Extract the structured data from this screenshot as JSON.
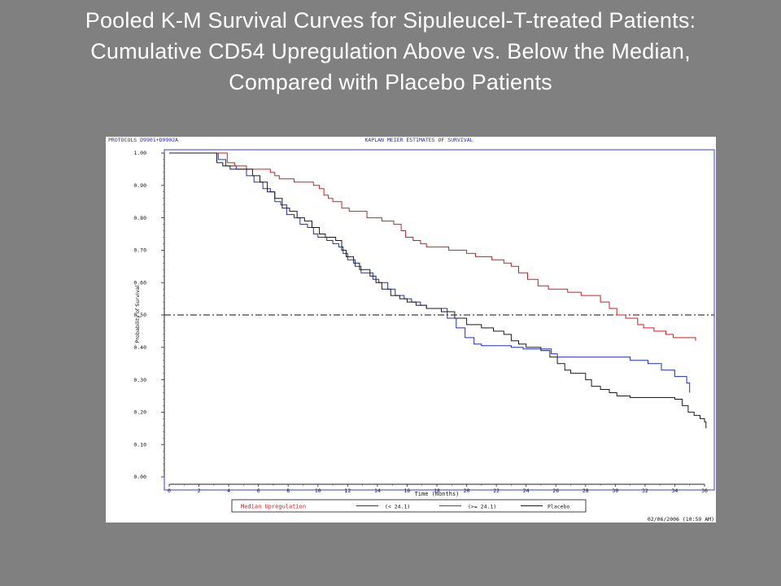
{
  "slide": {
    "title_lines": [
      "Pooled K-M Survival Curves for Sipuleucel-T-treated Patients:",
      "Cumulative CD54 Upregulation Above vs. Below the Median,",
      "Compared with Placebo Patients"
    ]
  },
  "chart_data": {
    "type": "line",
    "step": true,
    "header_left": "PROTOCOLS D9901+D9902A",
    "title": "KAPLAN MEIER ESTIMATES OF SURVIVAL",
    "xlabel": "Time (months)",
    "ylabel": "Probability of Survival",
    "xlim": [
      0,
      36
    ],
    "ylim": [
      0,
      1
    ],
    "xticks": [
      "0",
      "2",
      "4",
      "6",
      "8",
      "10",
      "12",
      "14",
      "16",
      "18",
      "20",
      "22",
      "24",
      "26",
      "28",
      "30",
      "32",
      "34",
      "36"
    ],
    "yticks": [
      "0.00",
      "0.10",
      "0.20",
      "0.30",
      "0.40",
      "0.50",
      "0.60",
      "0.70",
      "0.80",
      "0.90",
      "1.00"
    ],
    "reference_line": {
      "y": 0.5,
      "style": "dash-dot"
    },
    "legend": {
      "title": "Median Upregulation",
      "placement": "bottom",
      "entries": [
        "(< 24.1)",
        "(>= 24.1)",
        "Placebo"
      ]
    },
    "footer_right": "02/06/2006 (10:59 AM)",
    "series": [
      {
        "name": "(< 24.1)",
        "color": "#1f2fb0",
        "points": [
          [
            0,
            1.0
          ],
          [
            3.0,
            1.0
          ],
          [
            3.3,
            0.98
          ],
          [
            3.8,
            0.96
          ],
          [
            4.5,
            0.95
          ],
          [
            5.2,
            0.93
          ],
          [
            5.7,
            0.91
          ],
          [
            6.3,
            0.89
          ],
          [
            6.8,
            0.88
          ],
          [
            7.1,
            0.85
          ],
          [
            7.5,
            0.84
          ],
          [
            7.9,
            0.81
          ],
          [
            8.4,
            0.8
          ],
          [
            8.8,
            0.78
          ],
          [
            9.3,
            0.77
          ],
          [
            9.7,
            0.75
          ],
          [
            10.0,
            0.74
          ],
          [
            10.6,
            0.73
          ],
          [
            11.0,
            0.72
          ],
          [
            11.4,
            0.71
          ],
          [
            11.7,
            0.69
          ],
          [
            12.0,
            0.67
          ],
          [
            12.5,
            0.65
          ],
          [
            12.9,
            0.63
          ],
          [
            13.7,
            0.61
          ],
          [
            14.1,
            0.6
          ],
          [
            14.7,
            0.58
          ],
          [
            15.2,
            0.56
          ],
          [
            15.8,
            0.55
          ],
          [
            16.3,
            0.54
          ],
          [
            16.9,
            0.53
          ],
          [
            17.3,
            0.52
          ],
          [
            18.7,
            0.49
          ],
          [
            19.3,
            0.46
          ],
          [
            19.9,
            0.43
          ],
          [
            20.5,
            0.41
          ],
          [
            21.0,
            0.405
          ],
          [
            23.0,
            0.4
          ],
          [
            23.8,
            0.395
          ],
          [
            25.7,
            0.38
          ],
          [
            26.1,
            0.37
          ],
          [
            31.0,
            0.36
          ],
          [
            32.2,
            0.35
          ],
          [
            33.1,
            0.33
          ],
          [
            34.0,
            0.31
          ],
          [
            34.8,
            0.29
          ],
          [
            35.0,
            0.26
          ]
        ]
      },
      {
        "name": "(>= 24.1)",
        "color": "#c72020",
        "points": [
          [
            0,
            1.0
          ],
          [
            3.5,
            1.0
          ],
          [
            3.9,
            0.97
          ],
          [
            4.4,
            0.96
          ],
          [
            5.2,
            0.95
          ],
          [
            6.8,
            0.94
          ],
          [
            7.1,
            0.93
          ],
          [
            7.4,
            0.92
          ],
          [
            8.4,
            0.91
          ],
          [
            9.7,
            0.9
          ],
          [
            10.1,
            0.89
          ],
          [
            10.4,
            0.87
          ],
          [
            10.7,
            0.86
          ],
          [
            11.0,
            0.85
          ],
          [
            11.6,
            0.83
          ],
          [
            12.1,
            0.82
          ],
          [
            13.3,
            0.8
          ],
          [
            14.3,
            0.79
          ],
          [
            15.1,
            0.78
          ],
          [
            15.6,
            0.76
          ],
          [
            15.9,
            0.74
          ],
          [
            16.4,
            0.73
          ],
          [
            16.9,
            0.72
          ],
          [
            17.3,
            0.71
          ],
          [
            18.8,
            0.7
          ],
          [
            20.0,
            0.69
          ],
          [
            20.6,
            0.68
          ],
          [
            21.7,
            0.67
          ],
          [
            22.5,
            0.66
          ],
          [
            23.0,
            0.65
          ],
          [
            23.5,
            0.63
          ],
          [
            24.1,
            0.61
          ],
          [
            24.8,
            0.59
          ],
          [
            25.5,
            0.58
          ],
          [
            26.8,
            0.57
          ],
          [
            27.7,
            0.56
          ],
          [
            29.0,
            0.54
          ],
          [
            29.6,
            0.52
          ],
          [
            30.1,
            0.5
          ],
          [
            30.7,
            0.49
          ],
          [
            31.5,
            0.47
          ],
          [
            31.9,
            0.46
          ],
          [
            32.6,
            0.45
          ],
          [
            33.4,
            0.44
          ],
          [
            33.9,
            0.43
          ],
          [
            35.4,
            0.42
          ]
        ]
      },
      {
        "name": "Placebo",
        "color": "#1a1a1a",
        "points": [
          [
            0,
            1.0
          ],
          [
            2.9,
            1.0
          ],
          [
            3.2,
            0.97
          ],
          [
            3.6,
            0.96
          ],
          [
            4.1,
            0.95
          ],
          [
            5.0,
            0.95
          ],
          [
            5.6,
            0.93
          ],
          [
            6.1,
            0.91
          ],
          [
            6.6,
            0.88
          ],
          [
            7.1,
            0.86
          ],
          [
            7.6,
            0.83
          ],
          [
            8.1,
            0.82
          ],
          [
            8.6,
            0.8
          ],
          [
            9.1,
            0.79
          ],
          [
            9.6,
            0.77
          ],
          [
            10.1,
            0.75
          ],
          [
            10.5,
            0.74
          ],
          [
            11.2,
            0.73
          ],
          [
            11.6,
            0.7
          ],
          [
            11.9,
            0.68
          ],
          [
            12.4,
            0.66
          ],
          [
            12.8,
            0.64
          ],
          [
            13.5,
            0.62
          ],
          [
            13.9,
            0.6
          ],
          [
            14.3,
            0.58
          ],
          [
            14.9,
            0.56
          ],
          [
            15.5,
            0.55
          ],
          [
            16.0,
            0.54
          ],
          [
            16.6,
            0.53
          ],
          [
            17.3,
            0.52
          ],
          [
            18.3,
            0.51
          ],
          [
            19.2,
            0.49
          ],
          [
            20.0,
            0.47
          ],
          [
            21.0,
            0.46
          ],
          [
            21.8,
            0.45
          ],
          [
            22.5,
            0.44
          ],
          [
            23.0,
            0.42
          ],
          [
            23.5,
            0.41
          ],
          [
            24.0,
            0.4
          ],
          [
            25.0,
            0.39
          ],
          [
            25.6,
            0.37
          ],
          [
            26.1,
            0.35
          ],
          [
            26.6,
            0.33
          ],
          [
            27.0,
            0.32
          ],
          [
            28.0,
            0.3
          ],
          [
            28.4,
            0.28
          ],
          [
            29.0,
            0.27
          ],
          [
            29.6,
            0.26
          ],
          [
            30.1,
            0.25
          ],
          [
            31.0,
            0.245
          ],
          [
            34.0,
            0.24
          ],
          [
            34.5,
            0.22
          ],
          [
            34.9,
            0.2
          ],
          [
            35.3,
            0.19
          ],
          [
            35.7,
            0.18
          ],
          [
            36.0,
            0.17
          ],
          [
            36.1,
            0.15
          ]
        ]
      }
    ]
  }
}
